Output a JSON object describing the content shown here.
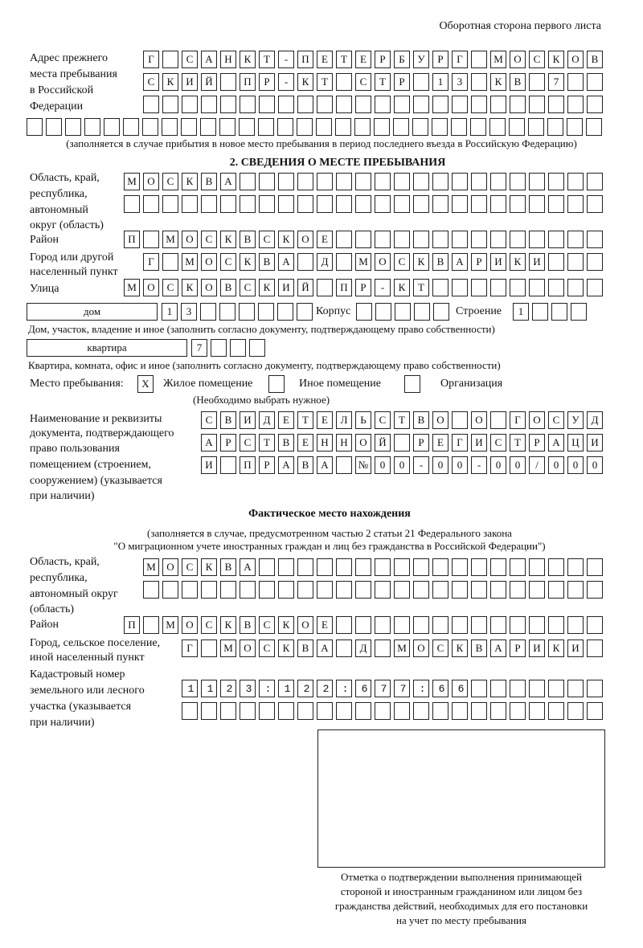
{
  "header": {
    "page_side": "Оборотная сторона первого листа"
  },
  "prev_address": {
    "label": [
      "Адрес прежнего",
      "места пребывания",
      "в Российской",
      "Федерации"
    ],
    "lines": [
      "Г САНКТ-ПЕТЕРБУРГ МОСКОВ",
      "СКИЙ ПР-КТ СТР 13 КВ 7  ",
      "",
      ""
    ],
    "note": "(заполняется в случае прибытия в новое место пребывания в период последнего въезда в Российскую Федерацию)"
  },
  "section2": {
    "title": "2. СВЕДЕНИЯ О МЕСТЕ ПРЕБЫВАНИЯ",
    "region_label": [
      "Область, край,",
      "республика,",
      "автономный",
      "округ (область)"
    ],
    "region_lines": [
      "МОСКВА",
      ""
    ],
    "district_label": "Район",
    "district": "П МОСКВСКОЕ",
    "city_label": [
      "Город или другой",
      "населенный пункт"
    ],
    "city": "Г МОСКВА Д МОСКВАРИКИ",
    "street_label": "Улица",
    "street": "МОСКОВСКИЙ ПР-КТ",
    "house_type": "дом",
    "house_number": "13",
    "korpus_label": "Корпус",
    "korpus": "",
    "building_label": "Строение",
    "building": "1",
    "house_note": "Дом, участок, владение и иное (заполнить согласно документу, подтверждающему право собственности)",
    "flat_type": "квартира",
    "flat_number": "7",
    "flat_note": "Квартира, комната, офис и иное (заполнить согласно документу, подтверждающему право собственности)",
    "stay_place_label": "Место пребывания:",
    "stay_options": [
      {
        "label": "Жилое помещение",
        "mark": "X",
        "checked": true
      },
      {
        "label": "Иное помещение",
        "mark": "",
        "checked": false
      },
      {
        "label": "Организация",
        "mark": "",
        "checked": false
      }
    ],
    "choose_note": "(Необходимо выбрать нужное)",
    "doc_label": [
      "Наименование и реквизиты",
      "документа, подтверждающего",
      "право пользования",
      "помещением (строением,",
      "сооружением) (указывается",
      "при наличии)"
    ],
    "doc_lines": [
      "СВИДЕТЕЛЬСТВО О ГОСУД",
      "АРСТВЕННОЙ РЕГИСТРАЦИ",
      "И ПРАВА №00-00-00/000"
    ]
  },
  "actual": {
    "title": "Фактическое место нахождения",
    "note": [
      "(заполняется в случае, предусмотренном частью 2 статьи 21 Федерального закона",
      "\"О миграционном учете иностранных граждан и лиц без гражданства в Российской Федерации\")"
    ],
    "region_label": [
      "Область, край,",
      "республика,",
      "автономный округ",
      "(область)"
    ],
    "region_lines": [
      "МОСКВА",
      ""
    ],
    "district_label": "Район",
    "district": "П МОСКВСКОЕ",
    "city_label": [
      "Город, сельское поселение,",
      "иной населенный пункт"
    ],
    "city": "Г МОСКВА Д МОСКВАРИКИ",
    "cadastre_label": [
      "Кадастровый номер",
      "земельного или лесного",
      "участка (указывается",
      "при наличии)"
    ],
    "cadastre_lines": [
      "1123:122:677:66",
      ""
    ]
  },
  "confirmation": {
    "caption": [
      "Отметка о подтверждении выполнения принимающей",
      "стороной и иностранным гражданином или лицом без",
      "гражданства действий, необходимых для его постановки",
      "на учет по месту пребывания"
    ]
  }
}
